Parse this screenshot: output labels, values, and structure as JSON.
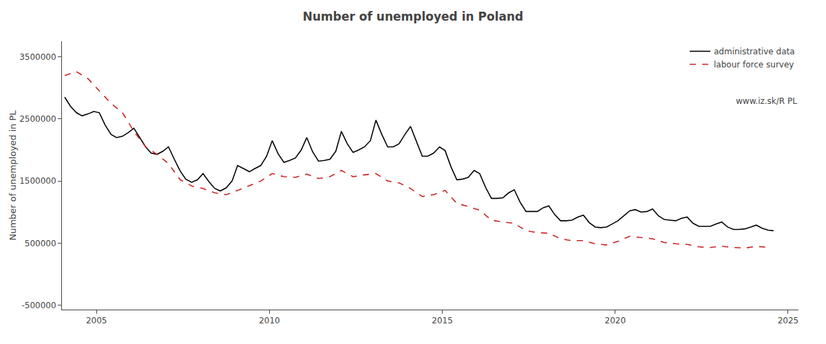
{
  "chart_data": {
    "type": "line",
    "title": "Number of unemployed in Poland",
    "ylabel": "Number of unemployed in PL",
    "annotations": [
      "www.iz.sk/R PL"
    ],
    "xlim": [
      2004.0,
      2025.3
    ],
    "xticks": [
      2005,
      2010,
      2015,
      2020,
      2025
    ],
    "ylim": [
      -570000,
      3750000
    ],
    "yticks": [
      -500000,
      500000,
      1500000,
      2500000,
      3500000
    ],
    "grid": false,
    "legend": "upper right",
    "series": [
      {
        "name": "administrative data",
        "color": "#000000",
        "line_style": "solid",
        "x": [
          2004.08,
          2004.25,
          2004.42,
          2004.58,
          2004.75,
          2004.92,
          2005.08,
          2005.25,
          2005.42,
          2005.58,
          2005.75,
          2005.92,
          2006.08,
          2006.25,
          2006.42,
          2006.58,
          2006.75,
          2006.92,
          2007.08,
          2007.25,
          2007.42,
          2007.58,
          2007.75,
          2007.92,
          2008.08,
          2008.25,
          2008.42,
          2008.58,
          2008.75,
          2008.92,
          2009.08,
          2009.25,
          2009.42,
          2009.58,
          2009.75,
          2009.92,
          2010.08,
          2010.25,
          2010.42,
          2010.58,
          2010.75,
          2010.92,
          2011.08,
          2011.25,
          2011.42,
          2011.58,
          2011.75,
          2011.92,
          2012.08,
          2012.25,
          2012.42,
          2012.58,
          2012.75,
          2012.92,
          2013.08,
          2013.25,
          2013.42,
          2013.58,
          2013.75,
          2013.92,
          2014.08,
          2014.25,
          2014.42,
          2014.58,
          2014.75,
          2014.92,
          2015.08,
          2015.25,
          2015.42,
          2015.58,
          2015.75,
          2015.92,
          2016.08,
          2016.25,
          2016.42,
          2016.58,
          2016.75,
          2016.92,
          2017.08,
          2017.25,
          2017.42,
          2017.58,
          2017.75,
          2017.92,
          2018.08,
          2018.25,
          2018.42,
          2018.58,
          2018.75,
          2018.92,
          2019.08,
          2019.25,
          2019.42,
          2019.58,
          2019.75,
          2019.92,
          2020.08,
          2020.25,
          2020.42,
          2020.58,
          2020.75,
          2020.92,
          2021.08,
          2021.25,
          2021.42,
          2021.58,
          2021.75,
          2021.92,
          2022.08,
          2022.25,
          2022.42,
          2022.58,
          2022.75,
          2022.92,
          2023.08,
          2023.25,
          2023.42,
          2023.58,
          2023.75,
          2023.92,
          2024.08,
          2024.25,
          2024.42,
          2024.58
        ],
        "values": [
          2850000,
          2700000,
          2600000,
          2550000,
          2580000,
          2620000,
          2600000,
          2400000,
          2250000,
          2200000,
          2220000,
          2280000,
          2350000,
          2200000,
          2050000,
          1950000,
          1930000,
          1980000,
          2050000,
          1850000,
          1660000,
          1530000,
          1480000,
          1520000,
          1620000,
          1490000,
          1380000,
          1340000,
          1390000,
          1500000,
          1750000,
          1700000,
          1650000,
          1700000,
          1750000,
          1900000,
          2150000,
          1940000,
          1800000,
          1830000,
          1870000,
          2000000,
          2200000,
          1970000,
          1820000,
          1830000,
          1850000,
          1980000,
          2300000,
          2100000,
          1960000,
          2000000,
          2050000,
          2150000,
          2480000,
          2250000,
          2050000,
          2050000,
          2100000,
          2250000,
          2380000,
          2140000,
          1900000,
          1900000,
          1950000,
          2050000,
          1990000,
          1730000,
          1520000,
          1530000,
          1560000,
          1670000,
          1620000,
          1400000,
          1220000,
          1220000,
          1230000,
          1310000,
          1360000,
          1160000,
          1010000,
          1010000,
          1010000,
          1070000,
          1100000,
          960000,
          860000,
          860000,
          870000,
          920000,
          950000,
          830000,
          760000,
          750000,
          760000,
          810000,
          860000,
          940000,
          1020000,
          1040000,
          1000000,
          1010000,
          1050000,
          940000,
          880000,
          870000,
          860000,
          900000,
          920000,
          820000,
          770000,
          770000,
          770000,
          810000,
          840000,
          760000,
          720000,
          720000,
          730000,
          760000,
          790000,
          740000,
          710000,
          700000
        ]
      },
      {
        "name": "labour force survey",
        "color": "#cc2222",
        "line_style": "dashed",
        "x": [
          2004.08,
          2004.42,
          2004.75,
          2005.08,
          2005.42,
          2005.75,
          2006.08,
          2006.42,
          2006.75,
          2007.08,
          2007.42,
          2007.75,
          2008.08,
          2008.42,
          2008.75,
          2009.08,
          2009.42,
          2009.75,
          2010.08,
          2010.42,
          2010.75,
          2011.08,
          2011.42,
          2011.75,
          2012.08,
          2012.42,
          2012.75,
          2013.08,
          2013.42,
          2013.75,
          2014.08,
          2014.42,
          2014.75,
          2015.08,
          2015.42,
          2015.75,
          2016.08,
          2016.42,
          2016.75,
          2017.08,
          2017.42,
          2017.75,
          2018.08,
          2018.42,
          2018.75,
          2019.08,
          2019.42,
          2019.75,
          2020.08,
          2020.42,
          2020.75,
          2021.08,
          2021.42,
          2021.75,
          2022.08,
          2022.42,
          2022.75,
          2023.08,
          2023.42,
          2023.75,
          2024.08,
          2024.42
        ],
        "values": [
          3200000,
          3260000,
          3150000,
          2950000,
          2750000,
          2600000,
          2300000,
          2050000,
          1930000,
          1780000,
          1520000,
          1420000,
          1380000,
          1310000,
          1280000,
          1350000,
          1430000,
          1500000,
          1620000,
          1570000,
          1560000,
          1610000,
          1540000,
          1570000,
          1670000,
          1570000,
          1600000,
          1620000,
          1500000,
          1470000,
          1380000,
          1250000,
          1280000,
          1350000,
          1140000,
          1090000,
          1030000,
          870000,
          840000,
          820000,
          700000,
          670000,
          660000,
          570000,
          540000,
          540000,
          490000,
          470000,
          530000,
          610000,
          590000,
          570000,
          510000,
          490000,
          480000,
          440000,
          430000,
          450000,
          430000,
          420000,
          450000,
          430000
        ]
      }
    ]
  }
}
